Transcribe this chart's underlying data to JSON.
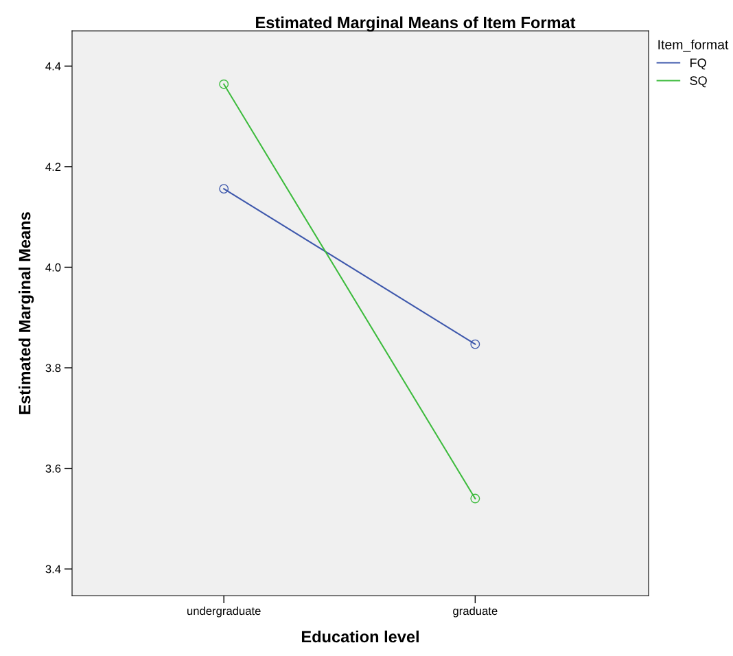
{
  "chart_data": {
    "type": "line",
    "title": "Estimated Marginal Means of Item Format",
    "xlabel": "Education level",
    "ylabel": "Estimated Marginal Means",
    "legend_title": "Item_format",
    "categories": [
      "undergraduate",
      "graduate"
    ],
    "series": [
      {
        "name": "FQ",
        "color": "#3e58ac",
        "values": [
          4.156,
          3.847
        ]
      },
      {
        "name": "SQ",
        "color": "#3dbb3d",
        "values": [
          4.364,
          3.54
        ]
      }
    ],
    "ylim": [
      3.347,
      4.47
    ],
    "yticks": [
      3.4,
      3.6,
      3.8,
      {
        "value": 4,
        "label": "4.0"
      },
      4.2,
      4.4
    ],
    "marker": "circle",
    "legend": "top right",
    "grid": false
  }
}
